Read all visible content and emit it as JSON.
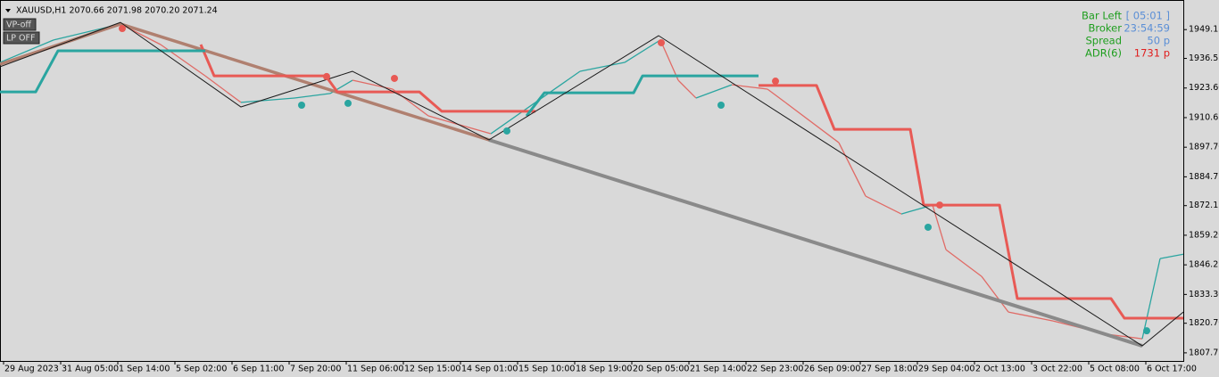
{
  "chart_data": {
    "type": "line",
    "title": "XAUUSD,H1  2070.66 2071.98 2070.20 2071.24",
    "buttons": [
      "VP-off",
      "LP OFF"
    ],
    "info": {
      "labels": [
        "Bar Left",
        "Broker",
        "Spread",
        "ADR(6)"
      ],
      "values": [
        "[ 05:01 ]",
        "23:54:59",
        "50 p",
        "1731 p"
      ],
      "label_color": "#1e9e1e",
      "value_colors": [
        "#5b8fd6",
        "#5b8fd6",
        "#5b8fd6",
        "#e02020"
      ]
    },
    "xlim": [
      0,
      663
    ],
    "ylim": [
      1804.2,
      1962.1
    ],
    "xticks": [
      {
        "value": 2,
        "label": "29 Aug 2023"
      },
      {
        "value": 34,
        "label": "31 Aug 05:00"
      },
      {
        "value": 66,
        "label": "1 Sep 14:00"
      },
      {
        "value": 98,
        "label": "5 Sep 02:00"
      },
      {
        "value": 130,
        "label": "6 Sep 11:00"
      },
      {
        "value": 162,
        "label": "7 Sep 20:00"
      },
      {
        "value": 194,
        "label": "11 Sep 06:00"
      },
      {
        "value": 226,
        "label": "12 Sep 15:00"
      },
      {
        "value": 258,
        "label": "14 Sep 01:00"
      },
      {
        "value": 290,
        "label": "15 Sep 10:00"
      },
      {
        "value": 322,
        "label": "18 Sep 19:00"
      },
      {
        "value": 354,
        "label": "20 Sep 05:00"
      },
      {
        "value": 386,
        "label": "21 Sep 14:00"
      },
      {
        "value": 418,
        "label": "22 Sep 23:00"
      },
      {
        "value": 450,
        "label": "26 Sep 09:00"
      },
      {
        "value": 482,
        "label": "27 Sep 18:00"
      },
      {
        "value": 514,
        "label": "29 Sep 04:00"
      },
      {
        "value": 546,
        "label": "2 Oct 13:00"
      },
      {
        "value": 578,
        "label": "3 Oct 22:00"
      },
      {
        "value": 610,
        "label": "5 Oct 08:00"
      },
      {
        "value": 642,
        "label": "6 Oct 17:00"
      }
    ],
    "yticks": [
      1949.15,
      1936.55,
      {
        "value": 1923.6,
        "label": "1923.60"
      },
      1910.65,
      {
        "value": 1897.7,
        "label": "1897.70"
      },
      1884.75,
      1872.15,
      {
        "value": 1859.2,
        "label": "1859.20"
      },
      1846.25,
      {
        "value": 1833.3,
        "label": "1833.30"
      },
      {
        "value": 1820.7,
        "label": "1820.70"
      },
      1807.75
    ],
    "up_color": "#2aa5a0",
    "down_color": "#e06b66",
    "series": [
      {
        "kind": "price",
        "x": [
          0,
          30,
          67.5,
          90,
          115,
          135,
          165,
          185,
          197.5,
          220,
          240,
          275,
          300,
          325,
          350,
          370,
          380,
          390,
          410,
          430,
          440,
          470,
          485,
          505,
          522.5,
          530,
          550,
          565,
          590,
          620,
          640,
          650,
          663
        ],
        "values": [
          1934.8,
          1944.6,
          1951.6,
          1942.6,
          1928.9,
          1917.3,
          1919.2,
          1921.2,
          1927.0,
          1923.1,
          1911.4,
          1903.6,
          1917.3,
          1930.9,
          1934.8,
          1944.6,
          1927.0,
          1919.2,
          1925.0,
          1923.1,
          1917.3,
          1899.7,
          1876.3,
          1868.5,
          1872.4,
          1852.9,
          1841.2,
          1825.6,
          1821.7,
          1815.9,
          1813.9,
          1849.0,
          1850.9
        ]
      },
      {
        "kind": "line",
        "color": "#b08070",
        "line_width": 3.5,
        "x": [
          0,
          67.5,
          274
        ],
        "values": [
          1934.0,
          1951.6,
          1900.9
        ]
      },
      {
        "kind": "line",
        "color": "#8a8a8a",
        "line_width": 4,
        "x": [
          274,
          640
        ],
        "values": [
          1900.9,
          1810.8
        ]
      },
      {
        "kind": "line",
        "color": "#e85a55",
        "line_width": 3,
        "x": [
          112.5,
          120,
          182.5,
          189,
          235,
          247.5,
          300,
          null,
          425,
          457.5,
          467.5,
          510,
          517.5,
          560,
          570,
          622.5,
          630,
          663
        ],
        "values": [
          1942.6,
          1928.9,
          1928.9,
          1921.9,
          1921.9,
          1913.4,
          1913.4,
          null,
          1924.7,
          1924.7,
          1905.5,
          1905.5,
          1872.4,
          1872.4,
          1831.5,
          1831.5,
          1822.9,
          1822.9
        ]
      },
      {
        "kind": "line",
        "color": "#2aa5a0",
        "line_width": 3,
        "x": [
          0,
          20,
          32.5,
          115,
          null,
          295,
          305,
          355,
          360,
          425
        ],
        "values": [
          1921.9,
          1921.9,
          1939.9,
          1939.9,
          null,
          1911.4,
          1921.5,
          1921.5,
          1928.9,
          1928.9
        ]
      },
      {
        "kind": "line",
        "color": "#1a1a1a",
        "line_width": 1,
        "x": [
          0,
          67.5,
          135,
          197.5,
          274,
          369,
          640,
          663
        ],
        "values": [
          1932.9,
          1952.3,
          1915.3,
          1930.9,
          1900.9,
          1946.5,
          1810.8,
          1825.6
        ]
      },
      {
        "kind": "dots",
        "color": "#e85a55",
        "x": [
          68.5,
          183,
          221,
          370.5,
          434.5,
          526.5
        ],
        "values": [
          1949.6,
          1928.6,
          1927.8,
          1943.4,
          1926.6,
          1872.4
        ]
      },
      {
        "kind": "dots",
        "color": "#2aa5a0",
        "x": [
          169,
          195,
          284,
          404,
          520,
          642.5
        ],
        "values": [
          1916.1,
          1916.9,
          1904.8,
          1916.1,
          1862.7,
          1817.4
        ]
      }
    ]
  }
}
